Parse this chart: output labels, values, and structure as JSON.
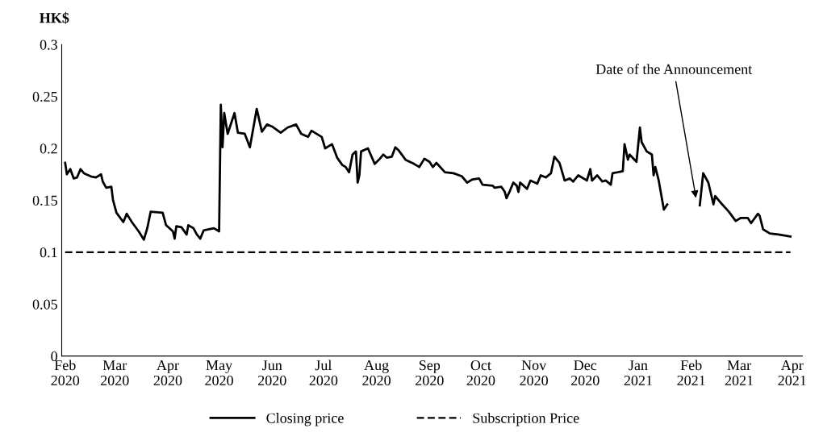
{
  "chart_data": {
    "type": "line",
    "ylabel": "HK$",
    "x": [
      "2020-02-01",
      "2020-02-02",
      "2020-02-04",
      "2020-02-06",
      "2020-02-08",
      "2020-02-10",
      "2020-02-12",
      "2020-02-16",
      "2020-02-19",
      "2020-02-22",
      "2020-02-23",
      "2020-02-25",
      "2020-02-28",
      "2020-02-29",
      "2020-03-02",
      "2020-03-06",
      "2020-03-08",
      "2020-03-11",
      "2020-03-15",
      "2020-03-18",
      "2020-03-20",
      "2020-03-22",
      "2020-03-29",
      "2020-03-31",
      "2020-04-04",
      "2020-04-05",
      "2020-04-06",
      "2020-04-09",
      "2020-04-12",
      "2020-04-13",
      "2020-04-16",
      "2020-04-18",
      "2020-04-20",
      "2020-04-22",
      "2020-04-28",
      "2020-05-01",
      "2020-05-02",
      "2020-05-03",
      "2020-05-04",
      "2020-05-06",
      "2020-05-10",
      "2020-05-12",
      "2020-05-16",
      "2020-05-19",
      "2020-05-23",
      "2020-05-26",
      "2020-05-29",
      "2020-06-01",
      "2020-06-06",
      "2020-06-10",
      "2020-06-15",
      "2020-06-18",
      "2020-06-22",
      "2020-06-24",
      "2020-06-30",
      "2020-07-02",
      "2020-07-06",
      "2020-07-09",
      "2020-07-12",
      "2020-07-14",
      "2020-07-16",
      "2020-07-18",
      "2020-07-20",
      "2020-07-21",
      "2020-07-22",
      "2020-07-23",
      "2020-07-27",
      "2020-07-31",
      "2020-08-03",
      "2020-08-05",
      "2020-08-07",
      "2020-08-10",
      "2020-08-12",
      "2020-08-14",
      "2020-08-18",
      "2020-08-23",
      "2020-08-26",
      "2020-08-29",
      "2020-09-01",
      "2020-09-03",
      "2020-09-05",
      "2020-09-10",
      "2020-09-15",
      "2020-09-20",
      "2020-09-23",
      "2020-09-26",
      "2020-09-30",
      "2020-10-02",
      "2020-10-08",
      "2020-10-09",
      "2020-10-13",
      "2020-10-15",
      "2020-10-16",
      "2020-10-18",
      "2020-10-20",
      "2020-10-22",
      "2020-10-23",
      "2020-10-24",
      "2020-10-26",
      "2020-10-28",
      "2020-10-30",
      "2020-11-03",
      "2020-11-05",
      "2020-11-08",
      "2020-11-11",
      "2020-11-13",
      "2020-11-16",
      "2020-11-19",
      "2020-11-22",
      "2020-11-24",
      "2020-11-27",
      "2020-12-02",
      "2020-12-04",
      "2020-12-05",
      "2020-12-08",
      "2020-12-11",
      "2020-12-13",
      "2020-12-16",
      "2020-12-17",
      "2020-12-23",
      "2020-12-24",
      "2020-12-26",
      "2020-12-27",
      "2020-12-31",
      "2021-01-02",
      "2021-01-03",
      "2021-01-06",
      "2021-01-09",
      "2021-01-10",
      "2021-01-11",
      "2021-01-13",
      "2021-01-16",
      "2021-01-18",
      "2021-01-25",
      "2021-02-06",
      "2021-02-08",
      "2021-02-11",
      "2021-02-14",
      "2021-02-15",
      "2021-02-18",
      "2021-02-23",
      "2021-02-27",
      "2021-03-02",
      "2021-03-06",
      "2021-03-08",
      "2021-03-12",
      "2021-03-13",
      "2021-03-15",
      "2021-03-19",
      "2021-03-24",
      "2021-03-31"
    ],
    "series": [
      {
        "name": "Closing price",
        "color": "#000000",
        "line_style": "solid",
        "values": [
          0.186,
          0.175,
          0.18,
          0.171,
          0.172,
          0.18,
          0.176,
          0.173,
          0.172,
          0.175,
          0.168,
          0.162,
          0.163,
          0.15,
          0.138,
          0.129,
          0.137,
          0.129,
          0.12,
          0.112,
          0.123,
          0.139,
          0.138,
          0.126,
          0.12,
          0.113,
          0.125,
          0.124,
          0.117,
          0.126,
          0.123,
          0.117,
          0.113,
          0.121,
          0.123,
          0.12,
          0.242,
          0.201,
          0.234,
          0.214,
          0.234,
          0.215,
          0.214,
          0.201,
          0.238,
          0.216,
          0.223,
          0.221,
          0.215,
          0.22,
          0.223,
          0.214,
          0.211,
          0.217,
          0.211,
          0.2,
          0.204,
          0.191,
          0.184,
          0.182,
          0.177,
          0.194,
          0.197,
          0.167,
          0.174,
          0.197,
          0.2,
          0.185,
          0.19,
          0.194,
          0.191,
          0.192,
          0.201,
          0.198,
          0.189,
          0.185,
          0.182,
          0.19,
          0.187,
          0.182,
          0.186,
          0.177,
          0.176,
          0.173,
          0.167,
          0.17,
          0.171,
          0.165,
          0.164,
          0.162,
          0.163,
          0.158,
          0.152,
          0.159,
          0.167,
          0.164,
          0.158,
          0.167,
          0.164,
          0.161,
          0.169,
          0.166,
          0.174,
          0.172,
          0.176,
          0.192,
          0.186,
          0.169,
          0.171,
          0.168,
          0.174,
          0.169,
          0.18,
          0.169,
          0.174,
          0.168,
          0.169,
          0.165,
          0.176,
          0.178,
          0.204,
          0.189,
          0.194,
          0.187,
          0.22,
          0.206,
          0.197,
          0.194,
          0.174,
          0.182,
          0.169,
          0.141,
          0.146,
          null,
          0.145,
          0.176,
          0.167,
          0.146,
          0.154,
          0.148,
          0.139,
          0.13,
          0.133,
          0.133,
          0.128,
          0.137,
          0.135,
          0.122,
          0.118,
          0.117,
          0.115
        ]
      },
      {
        "name": "Subscription Price",
        "color": "#000000",
        "line_style": "dashed",
        "x": [
          "2020-02-01",
          "2021-03-31"
        ],
        "values": [
          0.1,
          0.1
        ]
      }
    ],
    "xlim": [
      "2020-01-30",
      "2021-04-07"
    ],
    "xticks": [
      {
        "value": "2020-02-01",
        "label": "Feb\n2020"
      },
      {
        "value": "2020-03-01",
        "label": "Mar\n2020"
      },
      {
        "value": "2020-04-01",
        "label": "Apr\n2020"
      },
      {
        "value": "2020-05-01",
        "label": "May\n2020"
      },
      {
        "value": "2020-06-01",
        "label": "Jun\n2020"
      },
      {
        "value": "2020-07-01",
        "label": "Jul\n2020"
      },
      {
        "value": "2020-08-01",
        "label": "Aug\n2020"
      },
      {
        "value": "2020-09-01",
        "label": "Sep\n2020"
      },
      {
        "value": "2020-10-01",
        "label": "Oct\n2020"
      },
      {
        "value": "2020-11-01",
        "label": "Nov\n2020"
      },
      {
        "value": "2020-12-01",
        "label": "Dec\n2020"
      },
      {
        "value": "2021-01-01",
        "label": "Jan\n2021"
      },
      {
        "value": "2021-02-01",
        "label": "Feb\n2021"
      },
      {
        "value": "2021-03-01",
        "label": "Mar\n2021"
      },
      {
        "value": "2021-04-01",
        "label": "Apr\n2021"
      }
    ],
    "ylim": [
      0,
      0.3
    ],
    "yticks": [
      0,
      0.05,
      0.1,
      0.15,
      0.2,
      0.25,
      0.3
    ],
    "grid": false,
    "legend": "bottom",
    "annotations": [
      {
        "text": "Date of the Announcement",
        "x": "2021-02-04",
        "y": 0.15
      }
    ]
  }
}
